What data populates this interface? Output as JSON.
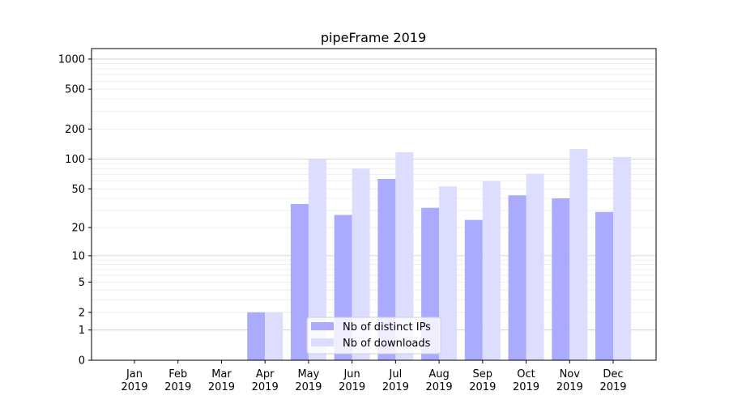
{
  "chart_data": {
    "type": "bar",
    "title": "pipeFrame 2019",
    "xlabel": "",
    "ylabel": "",
    "yscale": "log(1+y)",
    "ylim": [
      0,
      1300
    ],
    "yticks": [
      0,
      1,
      2,
      5,
      10,
      20,
      50,
      100,
      200,
      500,
      1000
    ],
    "grid": true,
    "legend_position": "bottom-center",
    "categories": [
      "Jan\n2019",
      "Feb\n2019",
      "Mar\n2019",
      "Apr\n2019",
      "May\n2019",
      "Jun\n2019",
      "Jul\n2019",
      "Aug\n2019",
      "Sep\n2019",
      "Oct\n2019",
      "Nov\n2019",
      "Dec\n2019"
    ],
    "series": [
      {
        "name": "Nb of distinct IPs",
        "color": "#aaaaff",
        "values": [
          0,
          0,
          0,
          2,
          35,
          27,
          63,
          32,
          24,
          43,
          40,
          29
        ]
      },
      {
        "name": "Nb of downloads",
        "color": "#ddddff",
        "values": [
          0,
          0,
          0,
          2,
          100,
          80,
          117,
          53,
          60,
          71,
          126,
          105
        ]
      }
    ]
  }
}
